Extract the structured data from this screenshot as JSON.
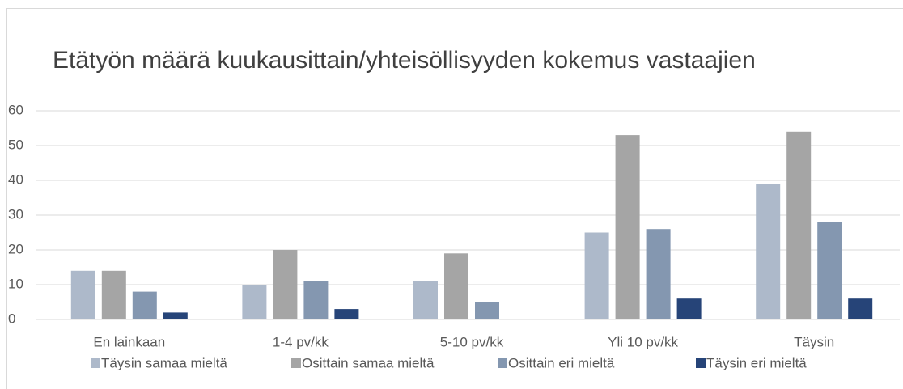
{
  "chart_data": {
    "type": "bar",
    "title": "Etätyön määrä kuukausittain/yhteisöllisyyden kokemus vastaajien",
    "categories": [
      "En lainkaan",
      "1-4 pv/kk",
      "5-10 pv/kk",
      "Yli 10 pv/kk",
      "Täysin"
    ],
    "series": [
      {
        "name": "Täysin samaa mieltä",
        "color": "#adb9ca",
        "values": [
          14,
          10,
          11,
          25,
          39
        ]
      },
      {
        "name": "Osittain samaa mieltä",
        "color": "#a5a5a5",
        "values": [
          14,
          20,
          19,
          53,
          54
        ]
      },
      {
        "name": "Osittain eri mieltä",
        "color": "#8497b0",
        "values": [
          8,
          11,
          5,
          26,
          28
        ]
      },
      {
        "name": "Täysin eri mieltä",
        "color": "#264478",
        "values": [
          2,
          3,
          null,
          6,
          6
        ]
      }
    ],
    "ylim": [
      0,
      60
    ],
    "yticks": [
      0,
      10,
      20,
      30,
      40,
      50,
      60
    ],
    "grid": true,
    "legend": "bottom"
  }
}
